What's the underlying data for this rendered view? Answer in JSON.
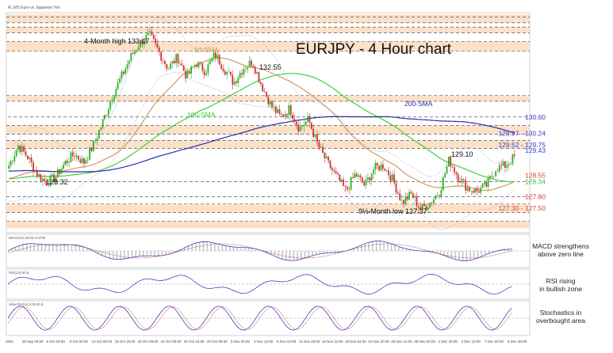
{
  "header": {
    "symbol": "FL:MS Euro vs Japanese Yen"
  },
  "chart_data": {
    "type": "candlestick",
    "title": "EURJPY - 4 Hour chart",
    "ylim": [
      126.6,
      134.2
    ],
    "x_ticks": [
      "2021",
      "29 Sep 00:00",
      "5 Oct 16:00",
      "8 Oct 08:00",
      "13 Oct 00:00",
      "15 Oct 16:00",
      "19 Oct 08:00",
      "22 Oct 00:00",
      "26 Oct 16:00",
      "29 Oct 08:00",
      "3 Nov 00:00",
      "4 Nov 12:00",
      "8 Nov 04:00",
      "11 Nov 20:00",
      "16 Nov 12:00",
      "18 Nov 04:00",
      "23 Nov 20:00",
      "25 Nov 12:00",
      "30 Nov 04:00",
      "1 Dec 20:00",
      "3 Dec 12:00",
      "7 Dec 04:00",
      "8 Dec 20:00"
    ],
    "price_levels": [
      {
        "value": 130.6,
        "label": "130.60",
        "color": "#3a3ad0",
        "style": "solid"
      },
      {
        "value": 130.02,
        "label": "129.97 - 130.24",
        "color": "#3a3ad0",
        "style": "zone"
      },
      {
        "value": 129.63,
        "label": "129.52 - 129.75",
        "color": "#3a3ad0",
        "style": "zone"
      },
      {
        "value": 129.43,
        "label": "129.43",
        "color": "#3a3ad0",
        "style": "text"
      },
      {
        "value": 128.55,
        "label": "128.55",
        "color": "#d94040",
        "style": "text"
      },
      {
        "value": 128.34,
        "label": "128.34",
        "color": "#3fbf3f",
        "style": "text"
      },
      {
        "value": 127.8,
        "label": "127.80",
        "color": "#d94040",
        "style": "text"
      },
      {
        "value": 127.4,
        "label": "127.30 - 127.50",
        "color": "#d94040",
        "style": "zone"
      }
    ],
    "annotations": [
      {
        "text": "4-Month high 133.47",
        "x": "19 Oct 08:00",
        "y": 133.47
      },
      {
        "text": "132.55",
        "x": "3 Nov 00:00",
        "y": 132.55
      },
      {
        "text": "128.32",
        "x": "5 Oct 16:00",
        "y": 128.32
      },
      {
        "text": "129.10",
        "x": "3 Dec 12:00",
        "y": 129.1
      },
      {
        "text": "9½-Month low 127.37",
        "x": "30 Nov 04:00",
        "y": 127.37
      }
    ],
    "series": [
      {
        "name": "50-SMA",
        "color": "#d49a5e"
      },
      {
        "name": "100-SMA",
        "color": "#3fcf3f"
      },
      {
        "name": "200-SMA",
        "color": "#2a2ab8"
      }
    ],
    "close_path": [
      128.9,
      129.6,
      129.2,
      128.6,
      128.3,
      128.5,
      129.0,
      129.3,
      129.0,
      129.6,
      130.4,
      131.3,
      132.0,
      132.7,
      133.2,
      133.47,
      132.9,
      132.3,
      132.7,
      132.0,
      132.5,
      132.2,
      132.8,
      132.3,
      131.8,
      132.3,
      132.55,
      131.7,
      131.0,
      130.6,
      130.9,
      130.2,
      130.5,
      129.6,
      129.0,
      128.5,
      128.0,
      128.6,
      128.2,
      128.8,
      128.9,
      128.4,
      127.6,
      127.9,
      127.37,
      127.6,
      128.0,
      129.1,
      128.5,
      128.1,
      128.0,
      128.2,
      128.8,
      128.9,
      129.2
    ],
    "panels": [
      {
        "name": "MACD",
        "header": "MACD(12,26,9) 0.0700",
        "annotation_lines": [
          "MACD strengthens",
          "above zero line"
        ],
        "ylim": [
          -0.6,
          0.6
        ]
      },
      {
        "name": "RSI",
        "header": "RSI(14) 64.8",
        "annotation_lines": [
          "RSI rising",
          "in bullish zone"
        ],
        "ylim": [
          20,
          80
        ]
      },
      {
        "name": "Stochastics",
        "header": "Slow Sto(14,3,3) 80.6",
        "annotation_lines": [
          "Stochastics in",
          "overbought area"
        ],
        "ylim": [
          0,
          100
        ]
      }
    ]
  }
}
